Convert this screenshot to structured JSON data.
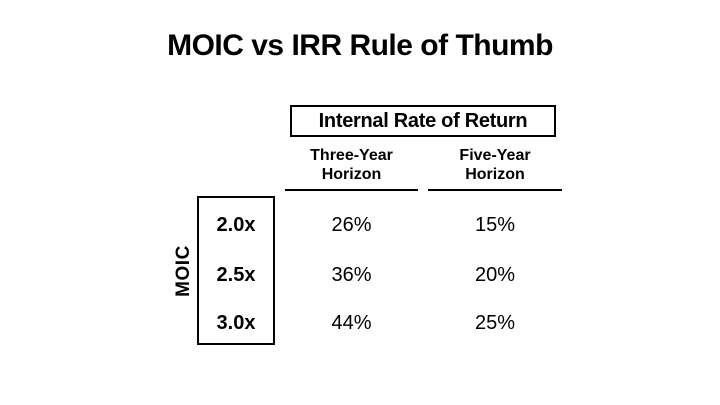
{
  "slide": {
    "title": "MOIC vs IRR Rule of Thumb"
  },
  "table": {
    "group_header": "Internal Rate of Return",
    "row_axis_label": "MOIC",
    "col_headers": [
      "Three-Year\nHorizon",
      "Five-Year\nHorizon"
    ],
    "rows": [
      {
        "moic": "2.0x",
        "three_year": "26%",
        "five_year": "15%"
      },
      {
        "moic": "2.5x",
        "three_year": "36%",
        "five_year": "20%"
      },
      {
        "moic": "3.0x",
        "three_year": "44%",
        "five_year": "25%"
      }
    ]
  },
  "colors": {
    "background": "#FFFFFF",
    "text": "#000000",
    "border": "#000000"
  }
}
